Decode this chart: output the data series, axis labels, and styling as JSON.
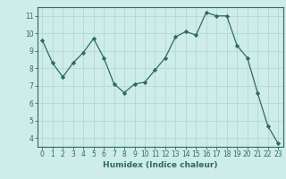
{
  "x": [
    0,
    1,
    2,
    3,
    4,
    5,
    6,
    7,
    8,
    9,
    10,
    11,
    12,
    13,
    14,
    15,
    16,
    17,
    18,
    19,
    20,
    21,
    22,
    23
  ],
  "y": [
    9.6,
    8.3,
    7.5,
    8.3,
    8.9,
    9.7,
    8.6,
    7.1,
    6.6,
    7.1,
    7.2,
    7.9,
    8.6,
    9.8,
    10.1,
    9.9,
    11.2,
    11.0,
    11.0,
    9.3,
    8.6,
    6.6,
    4.7,
    3.7
  ],
  "xlabel": "Humidex (Indice chaleur)",
  "ylim": [
    3.5,
    11.5
  ],
  "xlim": [
    -0.5,
    23.5
  ],
  "yticks": [
    4,
    5,
    6,
    7,
    8,
    9,
    10,
    11
  ],
  "xticks": [
    0,
    1,
    2,
    3,
    4,
    5,
    6,
    7,
    8,
    9,
    10,
    11,
    12,
    13,
    14,
    15,
    16,
    17,
    18,
    19,
    20,
    21,
    22,
    23
  ],
  "line_color": "#2e6b5e",
  "marker": "D",
  "marker_size": 2.2,
  "bg_color": "#ceecea",
  "grid_color": "#b8dbd8",
  "tick_label_color": "#2e6b5e",
  "xlabel_color": "#2e6b5e",
  "axis_color": "#2e6b5e",
  "tick_fontsize": 5.5,
  "xlabel_fontsize": 6.5
}
